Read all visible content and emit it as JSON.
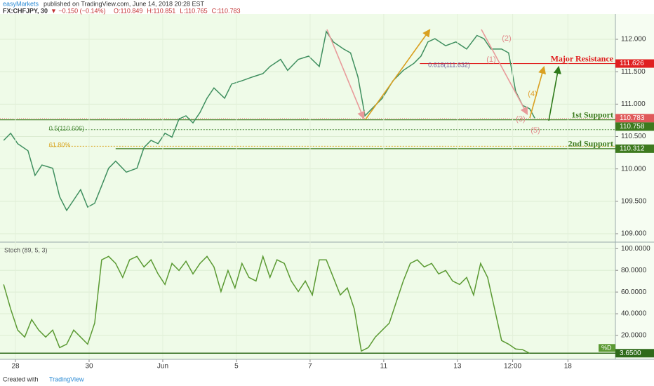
{
  "header": {
    "publisher": "easyMarkets",
    "published": "published on TradingView.com, June 14, 2018 20:28 EST",
    "symbol": "FX:CHFJPY, 30",
    "change": "▼ −0.150 (−0.14%)",
    "ohlc": [
      "O:110.849",
      "H:110.851",
      "L:110.765",
      "C:110.783"
    ]
  },
  "footer": {
    "created": "Created with",
    "brand": "TradingView"
  },
  "chart_data": [
    {
      "type": "line",
      "color": "#3f8f5f",
      "x": [
        -0.32,
        -0.13,
        0.06,
        0.34,
        0.53,
        0.72,
        1.01,
        1.2,
        1.39,
        1.58,
        1.77,
        1.96,
        2.15,
        2.34,
        2.53,
        2.72,
        3.01,
        3.3,
        3.49,
        3.68,
        3.87,
        4.06,
        4.25,
        4.44,
        4.63,
        4.82,
        5.01,
        5.2,
        5.39,
        5.68,
        5.87,
        6.15,
        6.44,
        6.72,
        6.91,
        7.2,
        7.39,
        7.68,
        7.96,
        8.25,
        8.44,
        8.63,
        8.91,
        9.1,
        9.3,
        9.49,
        9.68,
        9.96,
        10.25,
        10.53,
        10.82,
        11.01,
        11.2,
        11.39,
        11.68,
        11.96,
        12.25,
        12.53,
        12.72,
        12.91,
        13.2,
        13.39,
        13.58,
        13.77,
        13.96,
        14.1
      ],
      "values": [
        110.44,
        110.55,
        110.39,
        110.28,
        109.9,
        110.06,
        110.01,
        109.57,
        109.36,
        109.52,
        109.68,
        109.41,
        109.47,
        109.74,
        110.01,
        110.12,
        109.95,
        110.01,
        110.33,
        110.44,
        110.39,
        110.55,
        110.49,
        110.77,
        110.82,
        110.71,
        110.87,
        111.09,
        111.25,
        111.09,
        111.31,
        111.36,
        111.42,
        111.47,
        111.58,
        111.69,
        111.52,
        111.69,
        111.74,
        111.58,
        112.12,
        111.96,
        111.85,
        111.79,
        111.42,
        110.82,
        110.93,
        111.09,
        111.36,
        111.52,
        111.63,
        111.74,
        111.96,
        112.01,
        111.9,
        111.96,
        111.85,
        112.06,
        112.01,
        111.85,
        111.85,
        111.79,
        111.2,
        110.98,
        110.93,
        110.783
      ],
      "xlim": [
        -0.42,
        16.29
      ],
      "ylim": [
        108.87,
        112.39
      ],
      "yticks": [
        {
          "value": 112,
          "label": "112.000"
        },
        {
          "value": 111.5,
          "label": "111.500"
        },
        {
          "value": 111,
          "label": "111.000"
        },
        {
          "value": 110.5,
          "label": "110.500"
        },
        {
          "value": 110,
          "label": "110.000"
        },
        {
          "value": 109.5,
          "label": "109.500"
        },
        {
          "value": 109,
          "label": "109.000"
        }
      ],
      "grid": true,
      "levels": [
        {
          "name": "Major Resistance",
          "value": 111.626,
          "color": "#e02020",
          "x_start": 10.98
        },
        {
          "value": 110.783,
          "color": "#e05a5a"
        },
        {
          "name": "1st Support",
          "value": 110.758,
          "color": "#3d7a1e"
        },
        {
          "name": "2nd Support",
          "value": 110.312,
          "color": "#3d7a1e",
          "x_start": 2.72
        }
      ],
      "fib_lines": [
        {
          "label": "0.5(110.606)",
          "value": 110.606,
          "color": "#4a8a3a",
          "x_start": 0.91
        },
        {
          "label": "61.80%",
          "value": 110.35,
          "color": "#d9a520",
          "x_start": 0.91
        }
      ],
      "annotations": [
        {
          "text": "(1)",
          "color": "#e08a8a"
        },
        {
          "text": "(2)",
          "color": "#e08a8a"
        },
        {
          "text": "(3)",
          "color": "#e08a8a"
        },
        {
          "text": "(4)",
          "color": "#e0a030"
        },
        {
          "text": "(5)",
          "color": "#e08a8a"
        },
        {
          "text": "0.618(111.632)",
          "color": "#6a5a9a"
        }
      ]
    },
    {
      "type": "line",
      "title": "Stoch (89, 5, 3)",
      "legend": "%D",
      "color": "#5b9a33",
      "x": [
        -0.32,
        -0.13,
        0.06,
        0.25,
        0.44,
        0.63,
        0.82,
        1.01,
        1.2,
        1.39,
        1.58,
        1.77,
        1.96,
        2.15,
        2.34,
        2.53,
        2.72,
        2.91,
        3.1,
        3.3,
        3.49,
        3.68,
        3.87,
        4.06,
        4.25,
        4.44,
        4.63,
        4.82,
        5.01,
        5.2,
        5.39,
        5.58,
        5.77,
        5.96,
        6.15,
        6.34,
        6.53,
        6.72,
        6.91,
        7.1,
        7.3,
        7.49,
        7.68,
        7.87,
        8.06,
        8.25,
        8.44,
        8.63,
        8.82,
        9.01,
        9.2,
        9.39,
        9.58,
        9.77,
        9.96,
        10.15,
        10.34,
        10.53,
        10.72,
        10.91,
        11.1,
        11.3,
        11.49,
        11.68,
        11.87,
        12.06,
        12.25,
        12.44,
        12.63,
        12.82,
        13.01,
        13.2,
        13.39,
        13.58,
        13.77,
        13.96
      ],
      "values": [
        67,
        44.4,
        25,
        18.5,
        34.7,
        25,
        18.5,
        25,
        8.8,
        12,
        25,
        18.5,
        12,
        31.4,
        89.7,
        92.9,
        86.4,
        73.5,
        89.7,
        92.9,
        83.2,
        89.7,
        76.7,
        67,
        86.4,
        79.9,
        88.4,
        76.7,
        86.4,
        92.9,
        83.2,
        60.5,
        79.9,
        63.8,
        86.4,
        73.5,
        70.2,
        92.9,
        73.5,
        89.7,
        86.4,
        70.2,
        60.5,
        70.2,
        57.3,
        89.7,
        89.7,
        73.5,
        57.3,
        63.8,
        44.4,
        5.6,
        8.8,
        18.5,
        25,
        31.4,
        50.8,
        70.2,
        86.4,
        89.7,
        83.2,
        86.4,
        76.7,
        79.9,
        70.2,
        67,
        73.5,
        57.3,
        86.4,
        73.5,
        44.4,
        15.3,
        12,
        7.5,
        6.9,
        3.65
      ],
      "xlim": [
        -0.42,
        16.29
      ],
      "ylim": [
        -2,
        106
      ],
      "yticks": [
        {
          "value": 100,
          "label": "100.0000"
        },
        {
          "value": 80,
          "label": "80.0000"
        },
        {
          "value": 60,
          "label": "60.0000"
        },
        {
          "value": 40,
          "label": "40.0000"
        },
        {
          "value": 20,
          "label": "20.0000"
        }
      ],
      "xticks": [
        {
          "value": 0,
          "label": "28"
        },
        {
          "value": 2,
          "label": "30"
        },
        {
          "value": 4,
          "label": "Jun"
        },
        {
          "value": 6,
          "label": "5"
        },
        {
          "value": 8,
          "label": "7"
        },
        {
          "value": 10,
          "label": "11"
        },
        {
          "value": 12,
          "label": "13"
        },
        {
          "value": 13.5,
          "label": "12:00"
        },
        {
          "value": 15,
          "label": "18"
        }
      ],
      "grid": true,
      "level": {
        "value": 3.65,
        "label": "3.6500"
      }
    }
  ]
}
